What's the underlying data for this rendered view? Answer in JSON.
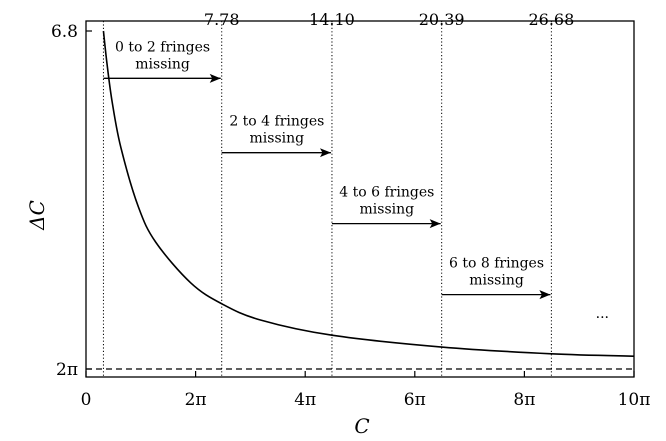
{
  "chart_data": {
    "type": "line",
    "xlabel": "C",
    "ylabel": "ΔC",
    "xlim": [
      0,
      31.4159
    ],
    "x_ticks": [
      {
        "value": 0,
        "label": "0"
      },
      {
        "value": 6.2832,
        "label": "2π"
      },
      {
        "value": 12.5664,
        "label": "4π"
      },
      {
        "value": 18.8496,
        "label": "6π"
      },
      {
        "value": 25.1327,
        "label": "8π"
      },
      {
        "value": 31.4159,
        "label": "10π"
      }
    ],
    "y_ticks": [
      {
        "level": "bottom",
        "label": "2π"
      },
      {
        "level": "top",
        "label": "6.8"
      }
    ],
    "series": [
      {
        "style": "solid",
        "x": [
          1.0,
          1.2,
          1.5,
          2.0,
          3.0,
          4.0,
          6.0,
          7.78,
          10.0,
          14.1,
          20.39,
          26.68,
          31.4
        ],
        "y_level": [
          1.0,
          0.905,
          0.79,
          0.655,
          0.48,
          0.375,
          0.255,
          0.193,
          0.145,
          0.1,
          0.065,
          0.045,
          0.038
        ]
      },
      {
        "style": "dashed",
        "x": [
          0,
          31.4159
        ],
        "y_level": [
          0,
          0
        ]
      }
    ],
    "vlines": [
      {
        "x": 1.0,
        "label": ""
      },
      {
        "x": 7.78,
        "label": "7.78"
      },
      {
        "x": 14.1,
        "label": "14.10"
      },
      {
        "x": 20.39,
        "label": "20.39"
      },
      {
        "x": 26.68,
        "label": "26.68"
      }
    ],
    "annotations": [
      {
        "line1": "0 to 2 fringes",
        "line2": "missing",
        "x_from": 1.0,
        "x_to": 7.78,
        "y_level": 0.86
      },
      {
        "line1": "2 to 4 fringes",
        "line2": "missing",
        "x_from": 7.78,
        "x_to": 14.1,
        "y_level": 0.64
      },
      {
        "line1": "4 to 6 fringes",
        "line2": "missing",
        "x_from": 14.1,
        "x_to": 20.39,
        "y_level": 0.43
      },
      {
        "line1": "6 to 8 fringes",
        "line2": "missing",
        "x_from": 20.39,
        "x_to": 26.68,
        "y_level": 0.22
      }
    ],
    "ellipsis": "...",
    "grid": false,
    "legend": "none"
  }
}
